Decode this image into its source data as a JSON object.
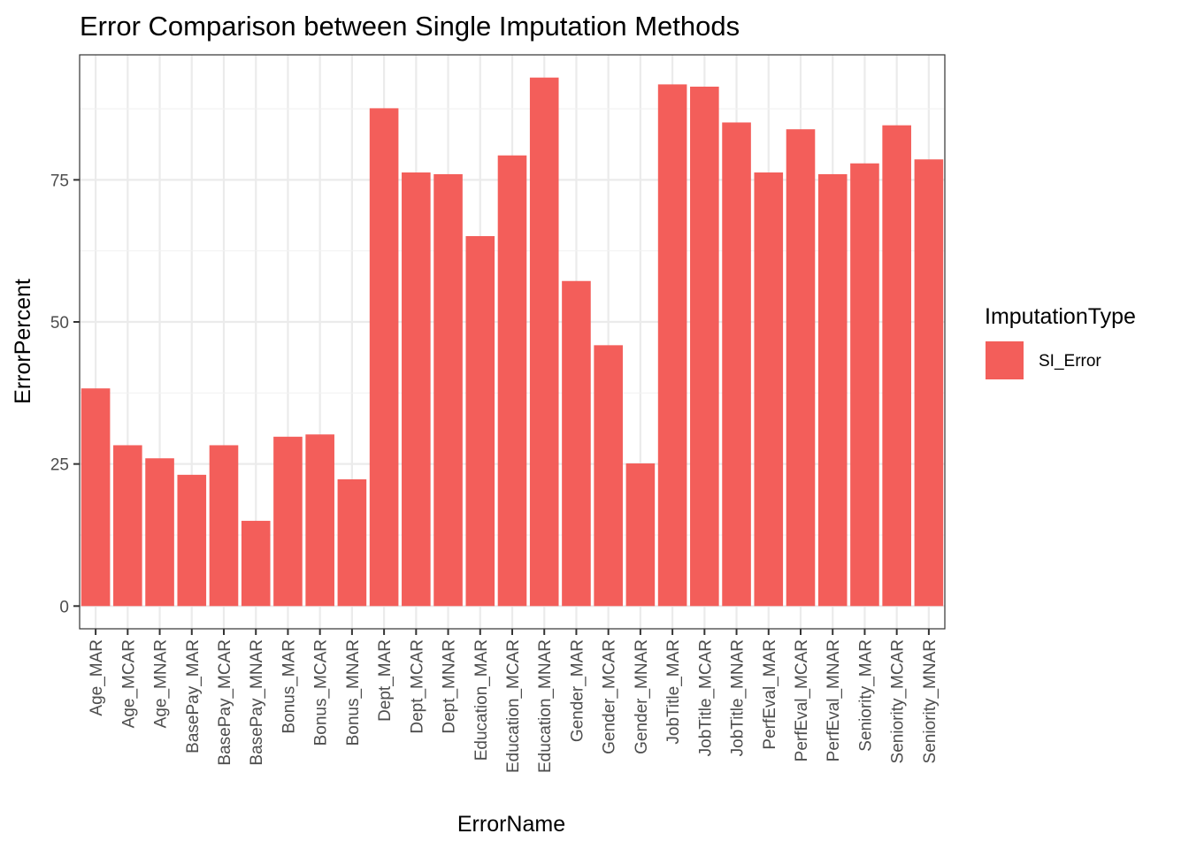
{
  "chart_data": {
    "type": "bar",
    "title": "Error Comparison between Single Imputation Methods",
    "xlabel": "ErrorName",
    "ylabel": "ErrorPercent",
    "ylim": [
      -4,
      97
    ],
    "yticks": [
      0,
      25,
      50,
      75
    ],
    "grid": true,
    "legend_position": "right",
    "legend": {
      "title": "ImputationType",
      "entries": [
        {
          "label": "SI_Error",
          "color": "#F35E5A"
        }
      ]
    },
    "categories": [
      "Age_MAR",
      "Age_MCAR",
      "Age_MNAR",
      "BasePay_MAR",
      "BasePay_MCAR",
      "BasePay_MNAR",
      "Bonus_MAR",
      "Bonus_MCAR",
      "Bonus_MNAR",
      "Dept_MAR",
      "Dept_MCAR",
      "Dept_MNAR",
      "Education_MAR",
      "Education_MCAR",
      "Education_MNAR",
      "Gender_MAR",
      "Gender_MCAR",
      "Gender_MNAR",
      "JobTitle_MAR",
      "JobTitle_MCAR",
      "JobTitle_MNAR",
      "PerfEval_MAR",
      "PerfEval_MCAR",
      "PerfEval_MNAR",
      "Seniority_MAR",
      "Seniority_MCAR",
      "Seniority_MNAR"
    ],
    "series": [
      {
        "name": "SI_Error",
        "color": "#F35E5A",
        "values": [
          38.3,
          28.3,
          26.0,
          23.1,
          28.3,
          15.0,
          29.8,
          30.2,
          22.3,
          87.6,
          76.3,
          76.0,
          65.1,
          79.3,
          93.0,
          57.2,
          45.9,
          25.1,
          91.8,
          91.4,
          85.1,
          76.3,
          83.9,
          76.0,
          77.9,
          84.6,
          78.6
        ]
      }
    ]
  }
}
